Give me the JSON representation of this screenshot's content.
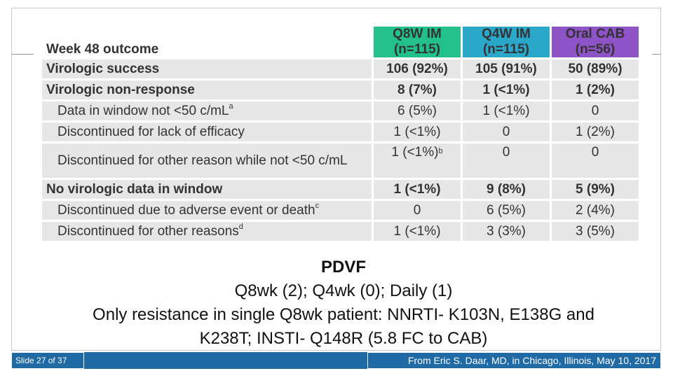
{
  "table": {
    "header": {
      "label": "Week 48 outcome",
      "cols": [
        {
          "name": "Q8W IM",
          "n": "(n=115)",
          "color": "#22c08b"
        },
        {
          "name": "Q4W IM",
          "n": "(n=115)",
          "color": "#2aa7c9"
        },
        {
          "name": "Oral CAB",
          "n": "(n=56)",
          "color": "#8e53c6"
        }
      ]
    },
    "rows": [
      {
        "label": "Virologic success",
        "sup": "",
        "values": [
          "106 (92%)",
          "105 (91%)",
          "50 (89%)"
        ],
        "value_sup": [
          "",
          "",
          ""
        ]
      },
      {
        "label": "Virologic non-response",
        "sup": "",
        "values": [
          "8 (7%)",
          "1 (<1%)",
          "1 (2%)"
        ],
        "value_sup": [
          "",
          "",
          ""
        ]
      },
      {
        "label": "Data in window not <50 c/mL",
        "sup": "a",
        "values": [
          "6 (5%)",
          "1 (<1%)",
          "0"
        ],
        "value_sup": [
          "",
          "",
          ""
        ]
      },
      {
        "label": "Discontinued for lack of efficacy",
        "sup": "",
        "values": [
          "1 (<1%)",
          "0",
          "1 (2%)"
        ],
        "value_sup": [
          "",
          "",
          ""
        ]
      },
      {
        "label": "Discontinued for other reason while not <50 c/mL",
        "sup": "",
        "values": [
          "1 (<1%)",
          "0",
          "0"
        ],
        "value_sup": [
          "b",
          "",
          ""
        ]
      },
      {
        "label": "No virologic data in window",
        "sup": "",
        "values": [
          "1 (<1%)",
          "9 (8%)",
          "5 (9%)"
        ],
        "value_sup": [
          "",
          "",
          ""
        ]
      },
      {
        "label": "Discontinued due to adverse event or death",
        "sup": "c",
        "values": [
          "0",
          "6 (5%)",
          "2 (4%)"
        ],
        "value_sup": [
          "",
          "",
          ""
        ]
      },
      {
        "label": "Discontinued for other reasons",
        "sup": "d",
        "values": [
          "1 (<1%)",
          "3 (3%)",
          "3 (5%)"
        ],
        "value_sup": [
          "",
          "",
          ""
        ]
      }
    ]
  },
  "pdvf": {
    "title": "PDVF",
    "line1": "Q8wk (2); Q4wk (0); Daily (1)",
    "line2": "Only resistance in single Q8wk patient: NNRTI- K103N, E138G and",
    "line3": "K238T; INSTI- Q148R (5.8 FC to CAB)"
  },
  "footer": {
    "slide_number": "Slide 27 of 37",
    "credit": "From Eric S. Daar, MD, in Chicago, Illinois, May 10, 2017"
  }
}
